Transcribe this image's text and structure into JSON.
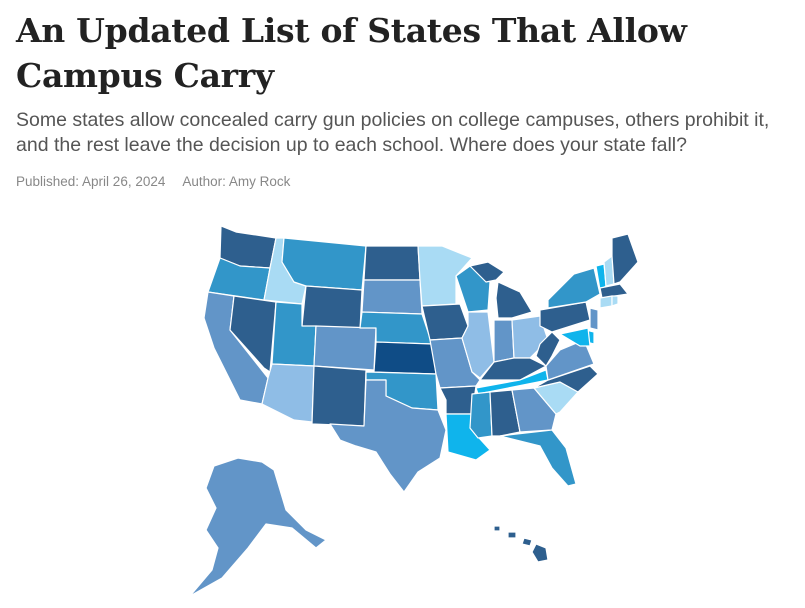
{
  "article": {
    "title": "An Updated List of States That Allow Campus Carry",
    "subtitle": "Some states allow concealed carry gun policies on college campuses, others prohibit it, and the rest leave the decision up to each school. Where does your state fall?",
    "published": "Published: April 26, 2024",
    "author": "Author: Amy Rock"
  },
  "map": {
    "colors": {
      "dark": "#2e5f8e",
      "mid": "#3296c9",
      "steel": "#6295c8",
      "light": "#8fbde6",
      "pale": "#a9dbf4",
      "cyan": "#0fb4ec",
      "navy": "#0f4c86"
    }
  }
}
